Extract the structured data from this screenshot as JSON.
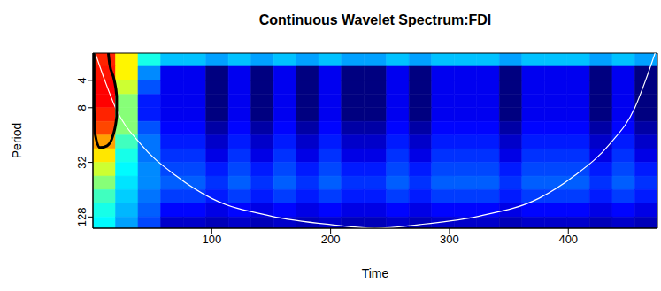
{
  "chart_data": {
    "type": "heatmap",
    "title": "Continuous Wavelet Spectrum:FDI",
    "x_label": "Time",
    "y_label": "Period",
    "xlim": [
      0,
      475
    ],
    "xticks": [
      100,
      200,
      300,
      400
    ],
    "ylim": [
      2,
      170
    ],
    "yticks": [
      4,
      8,
      32,
      128
    ],
    "log": "y",
    "grid": false,
    "time_edges": [
      0,
      19,
      38,
      57,
      76,
      95,
      114,
      133,
      152,
      171,
      190,
      209,
      228,
      247,
      266,
      285,
      304,
      323,
      342,
      361,
      380,
      399,
      418,
      437,
      456,
      475
    ],
    "period_edges": [
      2,
      2.8,
      4,
      5.7,
      8,
      11.3,
      16,
      22.6,
      32,
      45.3,
      64,
      90.5,
      128,
      170
    ],
    "cells": [
      [
        0.9,
        0.6,
        0.42,
        0.35,
        0.35,
        0.32,
        0.35,
        0.32,
        0.35,
        0.32,
        0.35,
        0.32,
        0.32,
        0.35,
        0.32,
        0.35,
        0.35,
        0.35,
        0.32,
        0.35,
        0.35,
        0.35,
        0.32,
        0.35,
        0.32
      ],
      [
        0.92,
        0.6,
        0.3,
        0.16,
        0.16,
        0.04,
        0.16,
        0.04,
        0.16,
        0.04,
        0.16,
        0.04,
        0.04,
        0.16,
        0.04,
        0.16,
        0.16,
        0.16,
        0.04,
        0.16,
        0.16,
        0.16,
        0.04,
        0.16,
        0.04
      ],
      [
        0.95,
        0.55,
        0.25,
        0.16,
        0.16,
        0.04,
        0.16,
        0.04,
        0.16,
        0.04,
        0.16,
        0.04,
        0.04,
        0.16,
        0.04,
        0.16,
        0.16,
        0.16,
        0.04,
        0.16,
        0.16,
        0.16,
        0.04,
        0.16,
        0.04
      ],
      [
        0.95,
        0.5,
        0.2,
        0.16,
        0.16,
        0.04,
        0.16,
        0.04,
        0.16,
        0.04,
        0.16,
        0.04,
        0.04,
        0.16,
        0.04,
        0.16,
        0.16,
        0.16,
        0.04,
        0.16,
        0.16,
        0.16,
        0.04,
        0.16,
        0.04
      ],
      [
        0.9,
        0.5,
        0.2,
        0.16,
        0.16,
        0.04,
        0.16,
        0.04,
        0.16,
        0.04,
        0.16,
        0.04,
        0.04,
        0.16,
        0.04,
        0.16,
        0.16,
        0.16,
        0.04,
        0.16,
        0.16,
        0.16,
        0.04,
        0.16,
        0.04
      ],
      [
        0.85,
        0.5,
        0.25,
        0.18,
        0.18,
        0.08,
        0.18,
        0.08,
        0.18,
        0.08,
        0.18,
        0.08,
        0.08,
        0.18,
        0.08,
        0.18,
        0.18,
        0.18,
        0.08,
        0.18,
        0.18,
        0.18,
        0.08,
        0.18,
        0.08
      ],
      [
        0.72,
        0.45,
        0.28,
        0.2,
        0.2,
        0.12,
        0.2,
        0.12,
        0.2,
        0.12,
        0.2,
        0.12,
        0.12,
        0.2,
        0.12,
        0.2,
        0.2,
        0.2,
        0.12,
        0.2,
        0.2,
        0.2,
        0.12,
        0.2,
        0.12
      ],
      [
        0.62,
        0.42,
        0.28,
        0.22,
        0.22,
        0.15,
        0.22,
        0.15,
        0.22,
        0.15,
        0.22,
        0.15,
        0.15,
        0.22,
        0.15,
        0.22,
        0.22,
        0.22,
        0.15,
        0.22,
        0.22,
        0.22,
        0.15,
        0.22,
        0.15
      ],
      [
        0.55,
        0.4,
        0.3,
        0.24,
        0.24,
        0.2,
        0.24,
        0.2,
        0.24,
        0.2,
        0.24,
        0.2,
        0.2,
        0.24,
        0.2,
        0.24,
        0.24,
        0.24,
        0.2,
        0.24,
        0.24,
        0.24,
        0.2,
        0.24,
        0.2
      ],
      [
        0.5,
        0.38,
        0.3,
        0.26,
        0.26,
        0.22,
        0.26,
        0.22,
        0.26,
        0.22,
        0.26,
        0.22,
        0.22,
        0.26,
        0.22,
        0.26,
        0.26,
        0.26,
        0.22,
        0.26,
        0.26,
        0.26,
        0.22,
        0.26,
        0.22
      ],
      [
        0.45,
        0.36,
        0.28,
        0.23,
        0.23,
        0.2,
        0.23,
        0.2,
        0.23,
        0.2,
        0.23,
        0.2,
        0.2,
        0.23,
        0.2,
        0.23,
        0.23,
        0.23,
        0.2,
        0.23,
        0.23,
        0.23,
        0.2,
        0.23,
        0.2
      ],
      [
        0.42,
        0.34,
        0.26,
        0.18,
        0.18,
        0.15,
        0.18,
        0.15,
        0.18,
        0.15,
        0.18,
        0.15,
        0.15,
        0.18,
        0.15,
        0.18,
        0.18,
        0.18,
        0.15,
        0.18,
        0.18,
        0.18,
        0.15,
        0.18,
        0.15
      ],
      [
        0.4,
        0.32,
        0.24,
        0.12,
        0.12,
        0.1,
        0.12,
        0.1,
        0.12,
        0.1,
        0.12,
        0.1,
        0.1,
        0.12,
        0.1,
        0.12,
        0.12,
        0.12,
        0.1,
        0.12,
        0.12,
        0.12,
        0.1,
        0.12,
        0.1
      ]
    ],
    "cone_of_influence": {
      "color": "#ffffff",
      "x": [
        2,
        10,
        19,
        40,
        70,
        100,
        150,
        200,
        237,
        275,
        325,
        375,
        405,
        435,
        456,
        465,
        473
      ],
      "values": [
        2,
        4,
        8,
        20,
        45,
        80,
        125,
        155,
        170,
        155,
        125,
        80,
        45,
        20,
        8,
        4,
        2
      ]
    },
    "significance": {
      "color": "#000000",
      "x": [
        1,
        1,
        2,
        6,
        12,
        17,
        20,
        20,
        18,
        14,
        13
      ],
      "values": [
        2,
        8,
        16,
        22,
        21,
        16,
        10,
        6,
        4,
        2.6,
        2
      ]
    }
  }
}
